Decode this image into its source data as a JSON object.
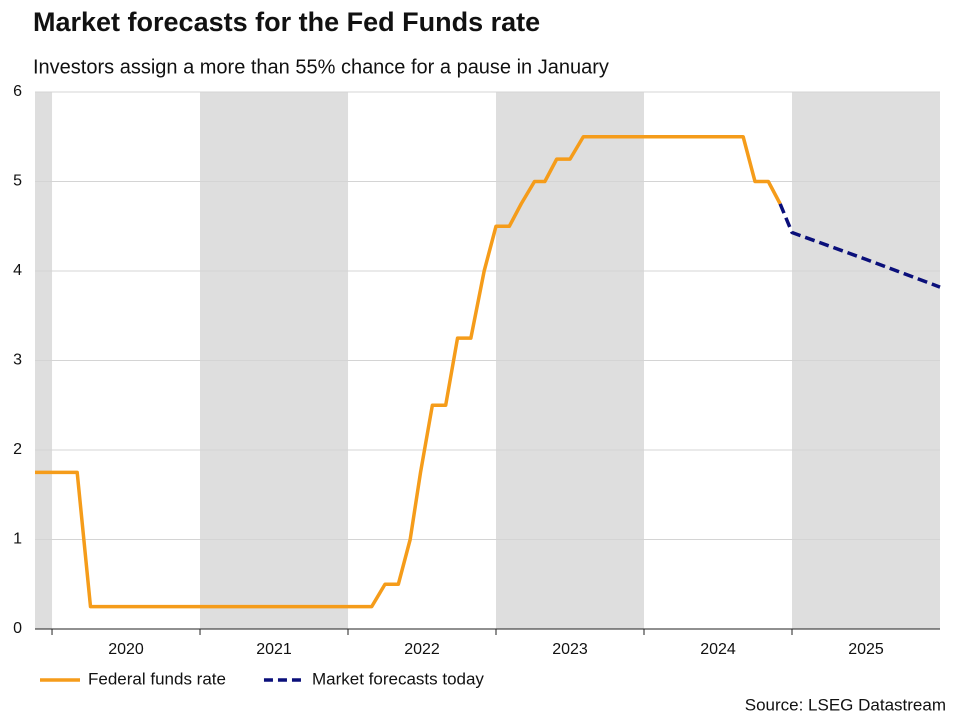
{
  "chart_data": {
    "type": "line",
    "title": "Market forecasts for the Fed Funds rate",
    "subtitle": "Investors assign a more than 55% chance for a pause in January",
    "source": "Source: LSEG Datastream",
    "xlim": [
      2019.885,
      2026
    ],
    "xticks": [
      2020,
      2021,
      2022,
      2023,
      2024,
      2025
    ],
    "ylim": [
      0,
      6
    ],
    "yticks": [
      0,
      1,
      2,
      3,
      4,
      5,
      6
    ],
    "grid": true,
    "series": [
      {
        "name": "Federal funds rate",
        "color": "#f59c1a",
        "dash": false,
        "x": [
          2019.885,
          2020.17,
          2020.26,
          2022.16,
          2022.25,
          2022.34,
          2022.42,
          2022.49,
          2022.57,
          2022.66,
          2022.74,
          2022.83,
          2022.92,
          2023.0,
          2023.09,
          2023.17,
          2023.26,
          2023.33,
          2023.41,
          2023.5,
          2023.59,
          2024.67,
          2024.75,
          2024.84,
          2024.92
        ],
        "values": [
          1.75,
          1.75,
          0.25,
          0.25,
          0.5,
          0.5,
          1.0,
          1.75,
          2.5,
          2.5,
          3.25,
          3.25,
          4.0,
          4.5,
          4.5,
          4.75,
          5.0,
          5.0,
          5.25,
          5.25,
          5.5,
          5.5,
          5.0,
          5.0,
          4.75
        ]
      },
      {
        "name": "Market forecasts today",
        "color": "#0a0f7a",
        "dash": true,
        "x": [
          2024.92,
          2025.0,
          2025.5,
          2026.0
        ],
        "values": [
          4.75,
          4.43,
          4.13,
          3.82
        ]
      }
    ]
  }
}
